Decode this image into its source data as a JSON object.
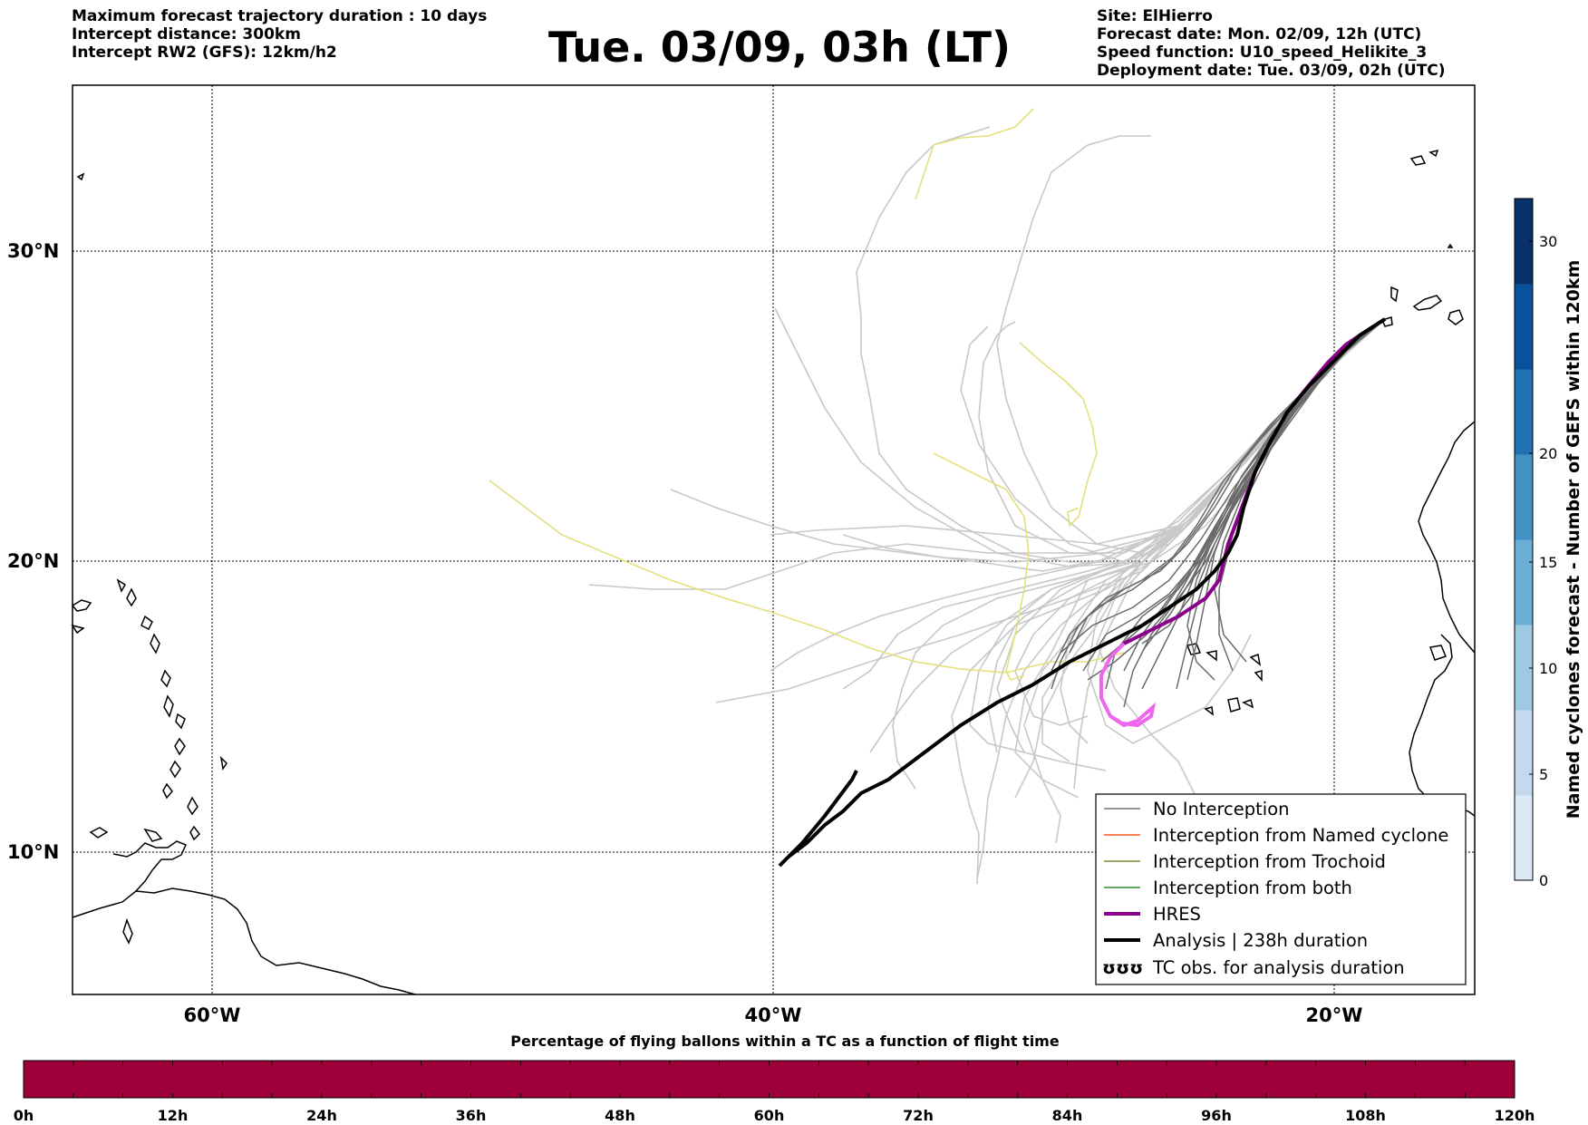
{
  "header": {
    "left_lines": [
      "Maximum forecast trajectory duration : 10 days",
      "Intercept distance: 300km",
      "Intercept RW2 (GFS):  12km/h2"
    ],
    "title": "Tue. 03/09, 03h (LT)",
    "right_lines": [
      "Site: ElHierro",
      "Forecast date: Mon. 02/09, 12h (UTC)",
      "Speed function: U10_speed_Helikite_3",
      "Deployment date: Tue. 03/09, 02h (UTC)"
    ]
  },
  "map": {
    "lat_labels": [
      "30°N",
      "20°N",
      "10°N"
    ],
    "lon_labels": [
      "60°W",
      "40°W",
      "20°W"
    ],
    "grid_lats": [
      30,
      20,
      10
    ],
    "grid_lons": [
      -60,
      -40,
      -20
    ],
    "extent": {
      "lon_min": -65,
      "lon_max": -15,
      "lat_min": 5.4,
      "lat_max": 34.7
    },
    "launch_site": {
      "lon": -16.9,
      "lat": 27.7
    }
  },
  "legend": {
    "items": [
      {
        "label": "No Interception",
        "color": "#707070"
      },
      {
        "label": "Interception from Named cyclone",
        "color": "#ff5a1e"
      },
      {
        "label": "Interception from Trochoid",
        "color": "#808030"
      },
      {
        "label": "Interception from both",
        "color": "#2e8b2e"
      },
      {
        "label": "HRES",
        "color": "#8b008b"
      },
      {
        "label": "Analysis | 238h duration",
        "color": "#000000"
      },
      {
        "label": "TC obs. for analysis duration",
        "symbol": "ʊʊʊ"
      }
    ]
  },
  "colorbar": {
    "label": "Named cyclones forecast - Number of GEFS within 120km",
    "ticks": [
      "0",
      "5",
      "10",
      "15",
      "20",
      "30"
    ],
    "colors": [
      "#dce9f6",
      "#c4d9ee",
      "#9ecae1",
      "#6baed6",
      "#4292c6",
      "#2171b5",
      "#08519c",
      "#08306b"
    ]
  },
  "percentage_bar": {
    "title": "Percentage of flying ballons within a TC as a function of flight time",
    "ticks": [
      "0h",
      "12h",
      "24h",
      "36h",
      "48h",
      "60h",
      "72h",
      "84h",
      "96h",
      "108h",
      "120h"
    ],
    "fill_color": "#9e003a",
    "value_percent": 0
  }
}
